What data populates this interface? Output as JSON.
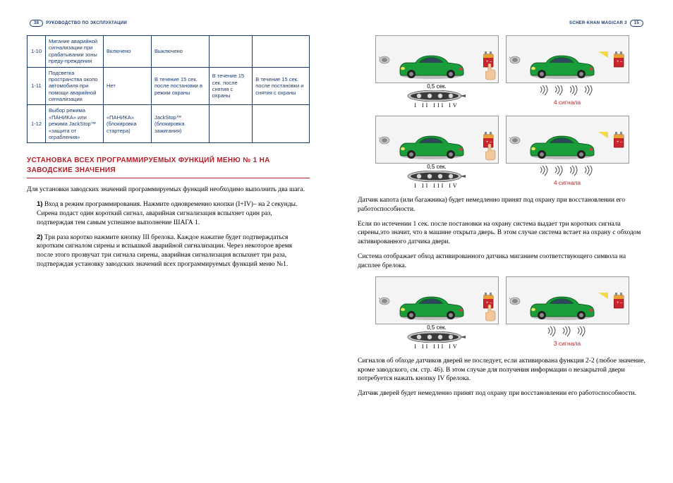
{
  "left": {
    "pageNum": "38",
    "headerText": "РУКОВОДСТВО ПО ЭКСПЛУАТАЦИИ",
    "table": {
      "rows": [
        {
          "num": "1-10",
          "desc": "Мигание аварийной сигнализации при срабатывании зоны преду-преждения",
          "c1": "Включено",
          "c2": "Выключено",
          "c3": "",
          "c4": ""
        },
        {
          "num": "1-11",
          "desc": "Подсветка пространства около автомобиля при помощи аварийной сигнализации",
          "c1": "Нет",
          "c2": "В течение 15 сек. после постановки в режим охраны",
          "c3": "В течение 15 сек. после снятия с охраны",
          "c4": "В течение 15 сек. после постановки и снятия с охраны"
        },
        {
          "num": "1-12",
          "desc": "Выбор режима «ПАНИКА» или режима JackStop™ «защита от ограбления»",
          "c1": "«ПАНИКА» (блокировка стартера)",
          "c2": "JackStop™ (блокировка зажигания)",
          "c3": "",
          "c4": ""
        }
      ]
    },
    "sectionTitle": "УСТАНОВКА ВСЕХ ПРОГРАММИРУЕМЫХ ФУНКЦИЙ МЕНЮ № 1 НА ЗАВОДСКИЕ ЗНАЧЕНИЯ",
    "intro": "Для установки заводских значений программируемых функций необходимо выполнить два шага.",
    "step1Label": "1)",
    "step1": " Вход в режим программирования. Нажмите одновременно кнопки (I+IV)– на 2 секунды. Сирена подаст один короткий сигнал, аварийная сигнализация вспыхнет один раз, подтверждая тем самым успешное выполнение ШАГА 1.",
    "step2Label": "2)",
    "step2": " Три раза коротко нажмите кнопку III брелока. Каждое нажатие будет подтверждаться коротким сигналом сирены и вспышкой аварийной сигнализации. Через некоторое время после этого прозвучат три сигнала сирены, аварийная сигнализация вспыхнет три раза, подтверждая установку заводских значений всех программируемых функций меню №1."
  },
  "right": {
    "pageNum": "15",
    "headerText": "SCHER-KHAN MAGICAR 3",
    "timeLabel": "0,5 сек.",
    "btnLabels": "I  II  III  IV",
    "signals4": "4 сигнала",
    "signals3": "3 сигнала",
    "para1": "Датчик капота (или багажника) будет немедленно принят под охрану при восстановлении его работоспособности.",
    "para2": "Если по истечении 1 сек. после постановки на охрану система выдает три коротких сигнала сирены,это значит, что в машине открыта дверь. В этом случае система встает на охрану с обходом активированного датчика двери.",
    "para3": "Система отображает обход активированного датчика миганием соответствующего символа на дисплее брелока.",
    "para4": "Сигналов об обходе датчиков дверей не последует, если активирована функция 2-2 (любое значение, кроме заводского, см. стр. 46). В этом случае для получения информации о незакрытой двери потребуется нажать кнопку IV брелока.",
    "para5": "Датчик дверей будет немедленно принят под охрану при восстановлении его работоспособности."
  },
  "colors": {
    "blue": "#1a3a6e",
    "red": "#b21e28",
    "carBody": "#1a9e3a",
    "carDark": "#0d6b25",
    "yellow": "#f4d536",
    "battery": "#c9232b",
    "batteryTop": "#e8a030"
  }
}
